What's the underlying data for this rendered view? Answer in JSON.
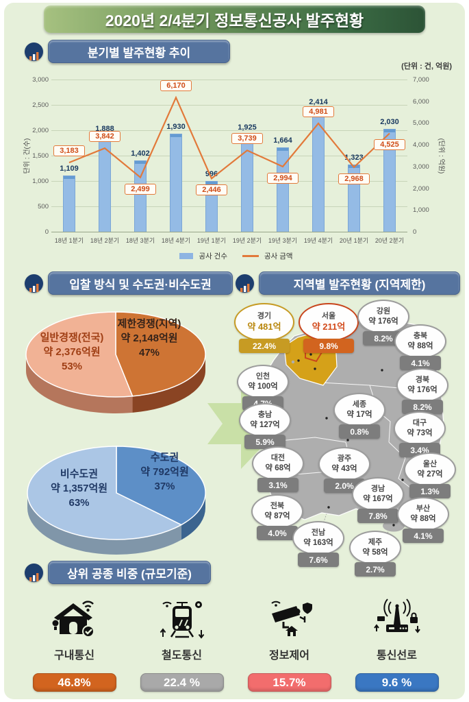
{
  "title": "2020년 2/4분기 정보통신공사 발주현황",
  "sections": {
    "quarterly": {
      "heading": "분기별 발주현황 추이",
      "unit_note": "(단위 : 건, 억원)"
    },
    "bidding": {
      "heading": "입찰 방식 및 수도권·비수도권"
    },
    "regional": {
      "heading": "지역별 발주현황 (지역제한)"
    },
    "top_works": {
      "heading": "상위 공종 비중 (규모기준)"
    }
  },
  "chart_data": [
    {
      "type": "bar+line",
      "title": "분기별 발주현황 추이",
      "categories": [
        "18년 1분기",
        "18년 2분기",
        "18년 3분기",
        "18년 4분기",
        "19년 1분기",
        "19년 2분기",
        "19년 3분기",
        "19년 4분기",
        "20년 1분기",
        "20년 2분기"
      ],
      "series": [
        {
          "name": "공사 건수",
          "type": "bar",
          "axis": "left",
          "color": "#8db4e2",
          "values": [
            1109,
            1888,
            1402,
            1930,
            996,
            1925,
            1664,
            2414,
            1323,
            2030
          ]
        },
        {
          "name": "공사 금액",
          "type": "line",
          "axis": "right",
          "color": "#e2793a",
          "values": [
            3183,
            3842,
            2499,
            6170,
            2446,
            3739,
            2994,
            4981,
            2968,
            4525
          ]
        }
      ],
      "left_axis": {
        "label": "단위 : 건(수)",
        "min": 0,
        "max": 3000,
        "step": 500
      },
      "right_axis": {
        "label": "(단위 : 억원)",
        "min": 0,
        "max": 7000,
        "step": 1000
      },
      "legend_position": "bottom",
      "grid": true
    },
    {
      "type": "pie",
      "name": "bidding-method",
      "slices": [
        {
          "label": "일반경쟁(전국)",
          "amount": "약 2,376억원",
          "pct": "53%",
          "value": 53,
          "color": "#f1b295"
        },
        {
          "label": "제한경쟁(지역)",
          "amount": "약 2,148억원",
          "pct": "47%",
          "value": 47,
          "color": "#ce7434"
        }
      ]
    },
    {
      "type": "pie",
      "name": "capital-vs-noncapital",
      "slices": [
        {
          "label": "비수도권",
          "amount": "약 1,357억원",
          "pct": "63%",
          "value": 63,
          "color": "#abc6e5"
        },
        {
          "label": "수도권",
          "amount": "약 792억원",
          "pct": "37%",
          "value": 37,
          "color": "#5d8fc7"
        }
      ]
    },
    {
      "type": "map",
      "name": "regional-orders",
      "regions": [
        {
          "name": "경기",
          "amount": "약 481억",
          "pct": "22.4%",
          "highlight": "gold"
        },
        {
          "name": "서울",
          "amount": "약 211억",
          "pct": "9.8%",
          "highlight": "orange"
        },
        {
          "name": "강원",
          "amount": "약 176억",
          "pct": "8.2%"
        },
        {
          "name": "충북",
          "amount": "약 88억",
          "pct": "4.1%"
        },
        {
          "name": "인천",
          "amount": "약 100억",
          "pct": "4.7%"
        },
        {
          "name": "경북",
          "amount": "약 176억",
          "pct": "8.2%"
        },
        {
          "name": "세종",
          "amount": "약 17억",
          "pct": "0.8%"
        },
        {
          "name": "충남",
          "amount": "약 127억",
          "pct": "5.9%"
        },
        {
          "name": "대구",
          "amount": "약 73억",
          "pct": "3.4%"
        },
        {
          "name": "대전",
          "amount": "약 68억",
          "pct": "3.1%"
        },
        {
          "name": "광주",
          "amount": "약 43억",
          "pct": "2.0%"
        },
        {
          "name": "울산",
          "amount": "약 27억",
          "pct": "1.3%"
        },
        {
          "name": "경남",
          "amount": "약 167억",
          "pct": "7.8%"
        },
        {
          "name": "전북",
          "amount": "약 87억",
          "pct": "4.0%"
        },
        {
          "name": "부산",
          "amount": "약 88억",
          "pct": "4.1%"
        },
        {
          "name": "전남",
          "amount": "약 163억",
          "pct": "7.6%"
        },
        {
          "name": "제주",
          "amount": "약 58억",
          "pct": "2.7%"
        }
      ],
      "highlight_colors": {
        "gold": "#c79b23",
        "orange": "#d2641f",
        "default": "#7d7d7d"
      }
    },
    {
      "type": "bar",
      "name": "top-works-share",
      "categories": [
        "구내통신",
        "철도통신",
        "정보제어",
        "통신선로"
      ],
      "values": [
        46.8,
        22.4,
        15.7,
        9.6
      ],
      "labels": [
        "46.8%",
        "22.4 %",
        "15.7%",
        "9.6 %"
      ],
      "colors": [
        "#d2641f",
        "#a9a9a9",
        "#f26d6d",
        "#3a77c2"
      ],
      "icons": [
        "house-wifi",
        "train",
        "cctv",
        "antenna"
      ]
    }
  ]
}
